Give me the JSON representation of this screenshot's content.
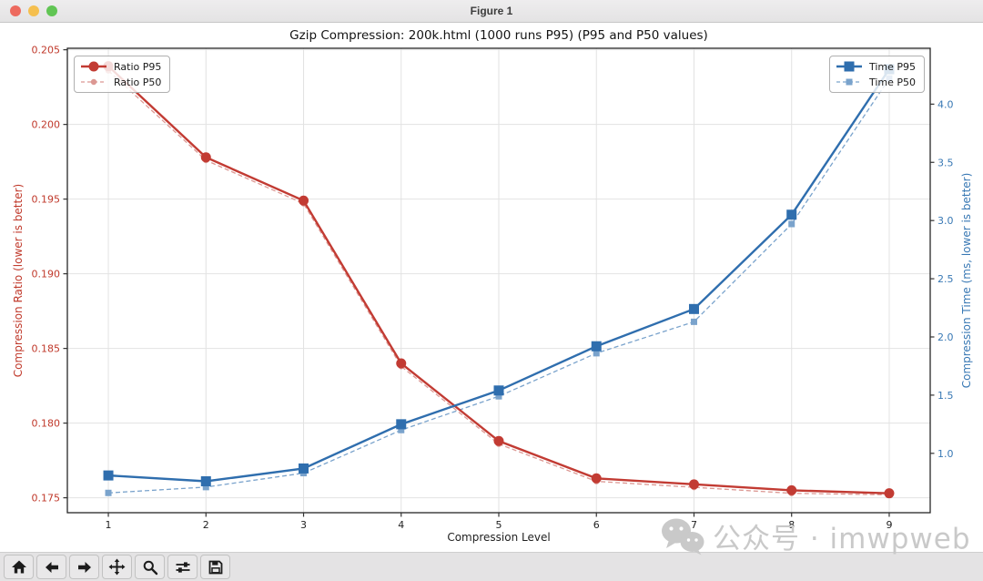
{
  "window": {
    "title": "Figure 1"
  },
  "chart_data": {
    "type": "line",
    "title": "Gzip Compression: 200k.html (1000 runs P95) (P95 and P50 values)",
    "xlabel": "Compression Level",
    "ylabel_left": "Compression Ratio (lower is better)",
    "ylabel_right": "Compression Time (ms, lower is better)",
    "x": [
      1,
      2,
      3,
      4,
      5,
      6,
      7,
      8,
      9
    ],
    "x_tick_labels": [
      "1",
      "2",
      "3",
      "4",
      "5",
      "6",
      "7",
      "8",
      "9"
    ],
    "series": [
      {
        "name": "Ratio P95",
        "axis": "left",
        "style": "solid",
        "marker": "circle",
        "color": "#c23b33",
        "values": [
          0.2039,
          0.1978,
          0.1949,
          0.184,
          0.1788,
          0.1763,
          0.1759,
          0.1755,
          0.1753
        ]
      },
      {
        "name": "Ratio P50",
        "axis": "left",
        "style": "dashed",
        "marker": "circle-small",
        "color": "#dc9893",
        "values": [
          0.2036,
          0.1976,
          0.1947,
          0.1838,
          0.1786,
          0.1761,
          0.1757,
          0.1753,
          0.1752
        ]
      },
      {
        "name": "Time P95",
        "axis": "right",
        "style": "solid",
        "marker": "square",
        "color": "#2f6eae",
        "values": [
          0.81,
          0.76,
          0.87,
          1.25,
          1.54,
          1.92,
          2.24,
          3.05,
          4.3
        ]
      },
      {
        "name": "Time P50",
        "axis": "right",
        "style": "dashed",
        "marker": "square-small",
        "color": "#7aa3cc",
        "values": [
          0.66,
          0.71,
          0.83,
          1.2,
          1.49,
          1.86,
          2.13,
          2.97,
          4.22
        ]
      }
    ],
    "left_ticks": [
      0.175,
      0.18,
      0.185,
      0.19,
      0.195,
      0.2,
      0.205
    ],
    "left_tick_labels": [
      "0.175",
      "0.180",
      "0.185",
      "0.190",
      "0.195",
      "0.200",
      "0.205"
    ],
    "right_ticks": [
      1.0,
      1.5,
      2.0,
      2.5,
      3.0,
      3.5,
      4.0
    ],
    "right_tick_labels": [
      "1.0",
      "1.5",
      "2.0",
      "2.5",
      "3.0",
      "3.5",
      "4.0"
    ],
    "xlim": [
      0.58,
      9.42
    ],
    "ylim_left": [
      0.174,
      0.2051
    ],
    "ylim_right": [
      0.49,
      4.48
    ],
    "grid": true,
    "grid_color": "#e2e2e2",
    "color_left": "#c0392b",
    "color_right": "#3878b4",
    "legend_left": {
      "position": "upper left",
      "items": [
        "Ratio P95",
        "Ratio P50"
      ]
    },
    "legend_right": {
      "position": "upper right",
      "items": [
        "Time P95",
        "Time P50"
      ]
    }
  },
  "toolbar": {
    "buttons": [
      {
        "name": "home",
        "icon": "home-icon"
      },
      {
        "name": "back",
        "icon": "arrow-left-icon"
      },
      {
        "name": "forward",
        "icon": "arrow-right-icon"
      },
      {
        "name": "pan",
        "icon": "move-icon"
      },
      {
        "name": "zoom",
        "icon": "magnifier-icon"
      },
      {
        "name": "configure-subplots",
        "icon": "sliders-icon"
      },
      {
        "name": "save",
        "icon": "floppy-disk-icon"
      }
    ]
  },
  "watermark": {
    "text": "公众号 · imwpweb",
    "icon": "wechat-icon",
    "color": "#c9c9c9"
  }
}
